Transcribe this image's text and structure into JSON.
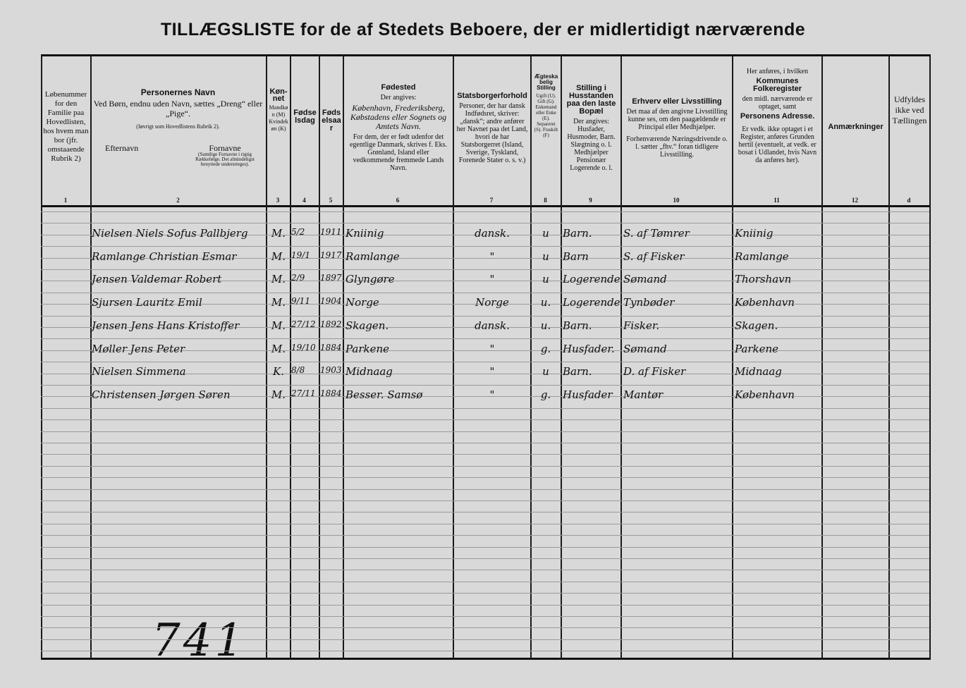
{
  "title": "TILLÆGSLISTE for de af Stedets Beboere, der er midlertidigt nærværende",
  "columns": [
    {
      "num": "1",
      "text": "Løbenummer for den Familie paa Hovedlisten, hos hvem man bor (jfr. omstaaende Rubrik 2)"
    },
    {
      "num": "2",
      "heading": "Personernes Navn",
      "text": "Ved Børn, endnu uden Navn, sættes „Dreng“ eller „Pige“.",
      "note": "(Iøvrigt som Hovedlistens Rubrik 2).",
      "sub_left": "Efternavn",
      "sub_right": "Fornavne",
      "sub_right_note": "(Samtlige Fornavne i rigtig Rækkefølge. Det almindeligst benyttede understreges)."
    },
    {
      "num": "3",
      "heading": "Køn-net",
      "text": "Mandkøn (M) Kvindekøn (K)"
    },
    {
      "num": "4",
      "heading": "Fødselsdag"
    },
    {
      "num": "5",
      "heading": "Fødselsaar"
    },
    {
      "num": "6",
      "heading": "Fødested",
      "text": "Der angives:",
      "text2": "København, Frederiksberg, Købstadens eller Sognets og Amtets Navn.",
      "text3": "For dem, der er født udenfor det egentlige Danmark, skrives f. Eks. Grønland, Island eller vedkommende fremmede Lands Navn."
    },
    {
      "num": "7",
      "heading": "Statsborgerforhold",
      "text": "Personer, der har dansk Indfødsret, skriver: „dansk“; andre anfører her Navnet paa det Land, hvori de har Statsborgerret (Island, Sverige, Tyskland, Forenede Stater o. s. v.)"
    },
    {
      "num": "8",
      "heading": "Ægteskabelig Stilling",
      "text": "Ugift (U). Gift (G). Enkemand eller Enke (E). Separeret (S). Fraskilt (F)"
    },
    {
      "num": "9",
      "heading": "Stilling i Husstanden paa den laste Bopæl",
      "text": "Der angives: Husfader, Husmoder, Barn. Slægtning o. l. Medhjælper Pensionær Logerende o. l."
    },
    {
      "num": "10",
      "heading": "Erhverv eller Livsstilling",
      "text": "Det maa af den angivne Livsstilling kunne ses, om den paagældende er Principal eller Medhjælper.",
      "text2": "Forhenværende Næringsdrivende o. l. sætter „fhv.“ foran tidligere Livsstilling."
    },
    {
      "num": "11",
      "pre": "Her anføres, i hvilken",
      "heading": "Kommunes Folkeregister",
      "text": "den midl. nærværende er optaget, samt",
      "heading2": "Personens Adresse.",
      "text2": "Er vedk. ikke optaget i et Register, anføres Grunden hertil (eventuelt, at vedk. er bosat i Udlandet, hvis Navn da anføres her)."
    },
    {
      "num": "12",
      "heading": "Anmærkninger"
    },
    {
      "num": "d",
      "text": "Udfyldes ikke ved Tællingen"
    }
  ],
  "rows": [
    {
      "name": "Nielsen Niels Sofus Pallbjerg",
      "sex": "M.",
      "day": "5/2",
      "year": "1911",
      "birthplace": "Kniinig",
      "citizenship": "dansk.",
      "marital": "u",
      "household": "Barn.",
      "occupation": "S. af Tømrer",
      "register": "Kniinig"
    },
    {
      "name": "Ramlange Christian Esmar",
      "sex": "M.",
      "day": "19/1",
      "year": "1917",
      "birthplace": "Ramlange",
      "citizenship": "\"",
      "marital": "u",
      "household": "Barn",
      "occupation": "S. af Fisker",
      "register": "Ramlange"
    },
    {
      "name": "Jensen Valdemar Robert",
      "sex": "M.",
      "day": "2/9",
      "year": "1897",
      "birthplace": "Glyngøre",
      "citizenship": "\"",
      "marital": "u",
      "household": "Logerende",
      "occupation": "Sømand",
      "register": "Thorshavn"
    },
    {
      "name": "Sjursen Lauritz Emil",
      "sex": "M.",
      "day": "9/11",
      "year": "1904",
      "birthplace": "Norge",
      "citizenship": "Norge",
      "marital": "u.",
      "household": "Logerende",
      "occupation": "Tynbøder",
      "register": "København"
    },
    {
      "name": "Jensen Jens Hans Kristoffer",
      "sex": "M.",
      "day": "27/12",
      "year": "1892",
      "birthplace": "Skagen.",
      "citizenship": "dansk.",
      "marital": "u.",
      "household": "Barn.",
      "occupation": "Fisker.",
      "register": "Skagen."
    },
    {
      "name": "Møller Jens Peter",
      "sex": "M.",
      "day": "19/10",
      "year": "1884",
      "birthplace": "Parkene",
      "citizenship": "\"",
      "marital": "g.",
      "household": "Husfader.",
      "occupation": "Sømand",
      "register": "Parkene"
    },
    {
      "name": "Nielsen Simmena",
      "sex": "K.",
      "day": "8/8",
      "year": "1903",
      "birthplace": "Midnaag",
      "citizenship": "\"",
      "marital": "u",
      "household": "Barn.",
      "occupation": "D. af Fisker",
      "register": "Midnaag"
    },
    {
      "name": "Christensen Jørgen Søren",
      "sex": "M.",
      "day": "27/11",
      "year": "1884",
      "birthplace": "Besser. Samsø",
      "citizenship": "\"",
      "marital": "g.",
      "household": "Husfader",
      "occupation": "Mantør",
      "register": "København"
    }
  ],
  "page_mark": "741"
}
